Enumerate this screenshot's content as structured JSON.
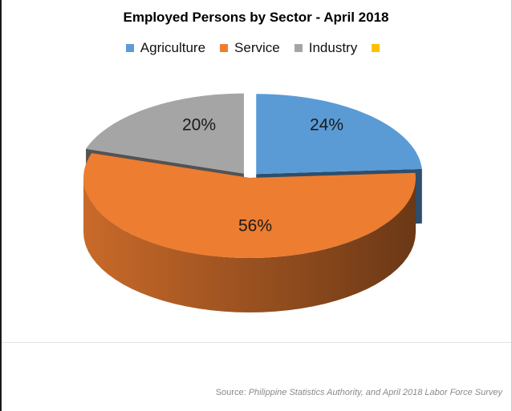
{
  "chart_data": {
    "type": "pie",
    "title": "Employed Persons by Sector - April 2018",
    "categories": [
      "Agriculture",
      "Service",
      "Industry",
      ""
    ],
    "values": [
      24,
      56,
      20,
      0
    ],
    "labels": [
      "24%",
      "56%",
      "20%",
      ""
    ],
    "colors": [
      "#5b9bd5",
      "#ed7d31",
      "#a5a5a5",
      "#ffc000"
    ],
    "legend": "top",
    "style": "3d-exploded"
  },
  "source": {
    "prefix": "Source: ",
    "text": "Philippine Statistics Authority, and April 2018 Labor Force Survey"
  }
}
